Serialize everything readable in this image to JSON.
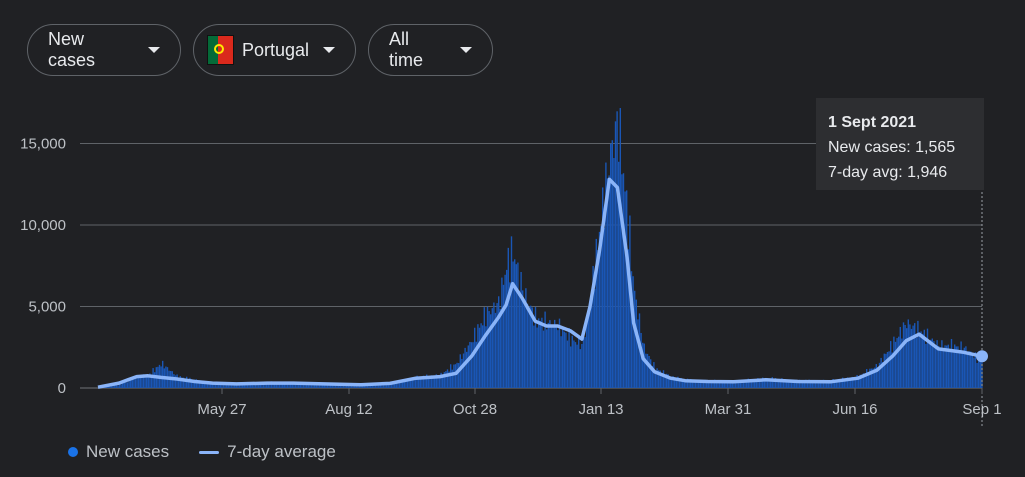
{
  "filters": {
    "metric": "New cases",
    "country": "Portugal",
    "range": "All time"
  },
  "colors": {
    "bars": "#1a56b5",
    "avg_line": "#8ab4f8",
    "grid": "#5f6368",
    "background": "#202124"
  },
  "tooltip": {
    "date": "1 Sept 2021",
    "cases_line": "New cases: 1,565",
    "avg_line": "7-day avg: 1,946"
  },
  "legend": {
    "cases": "New cases",
    "avg": "7-day average"
  },
  "chart_data": {
    "type": "area",
    "title": "",
    "xlabel": "",
    "ylabel": "",
    "x_tick_labels": [
      "May 27",
      "Aug 12",
      "Oct 28",
      "Jan 13",
      "Mar 31",
      "Jun 16",
      "Sep 1"
    ],
    "y_tick_labels": [
      "0",
      "5,000",
      "10,000",
      "15,000"
    ],
    "ylim": [
      0,
      16500
    ],
    "grid": true,
    "legend_position": "bottom",
    "series": [
      {
        "name": "New cases",
        "x": [
          "2020-03-02",
          "2020-03-15",
          "2020-03-26",
          "2020-04-02",
          "2020-04-10",
          "2020-04-20",
          "2020-05-01",
          "2020-05-12",
          "2020-05-27",
          "2020-06-15",
          "2020-07-01",
          "2020-07-20",
          "2020-08-12",
          "2020-08-30",
          "2020-09-15",
          "2020-09-30",
          "2020-10-10",
          "2020-10-20",
          "2020-10-28",
          "2020-11-05",
          "2020-11-10",
          "2020-11-14",
          "2020-11-20",
          "2020-11-28",
          "2020-12-05",
          "2020-12-12",
          "2020-12-20",
          "2020-12-27",
          "2021-01-01",
          "2021-01-07",
          "2021-01-13",
          "2021-01-18",
          "2021-01-24",
          "2021-01-28",
          "2021-02-03",
          "2021-02-10",
          "2021-02-20",
          "2021-03-01",
          "2021-03-15",
          "2021-03-31",
          "2021-04-20",
          "2021-05-10",
          "2021-05-30",
          "2021-06-16",
          "2021-06-28",
          "2021-07-08",
          "2021-07-16",
          "2021-07-24",
          "2021-08-05",
          "2021-08-20",
          "2021-09-01"
        ],
        "values": [
          0,
          200,
          700,
          800,
          1500,
          700,
          500,
          300,
          300,
          350,
          350,
          250,
          250,
          300,
          650,
          800,
          1500,
          3000,
          4500,
          5200,
          7500,
          8300,
          6000,
          4200,
          4000,
          3800,
          3000,
          2600,
          5500,
          10000,
          14200,
          16400,
          10500,
          6000,
          2500,
          1200,
          700,
          500,
          450,
          400,
          600,
          450,
          450,
          700,
          1400,
          2800,
          4000,
          3500,
          2600,
          2500,
          1565
        ]
      },
      {
        "name": "7-day average",
        "x": [
          "2020-03-02",
          "2020-03-15",
          "2020-03-26",
          "2020-04-02",
          "2020-04-10",
          "2020-04-20",
          "2020-05-01",
          "2020-05-12",
          "2020-05-27",
          "2020-06-15",
          "2020-07-01",
          "2020-07-20",
          "2020-08-12",
          "2020-08-30",
          "2020-09-15",
          "2020-09-30",
          "2020-10-10",
          "2020-10-20",
          "2020-10-28",
          "2020-11-05",
          "2020-11-10",
          "2020-11-14",
          "2020-11-20",
          "2020-11-28",
          "2020-12-05",
          "2020-12-12",
          "2020-12-20",
          "2020-12-27",
          "2021-01-01",
          "2021-01-07",
          "2021-01-13",
          "2021-01-18",
          "2021-01-24",
          "2021-01-28",
          "2021-02-03",
          "2021-02-10",
          "2021-02-20",
          "2021-03-01",
          "2021-03-15",
          "2021-03-31",
          "2021-04-20",
          "2021-05-10",
          "2021-05-30",
          "2021-06-16",
          "2021-06-28",
          "2021-07-08",
          "2021-07-16",
          "2021-07-24",
          "2021-08-05",
          "2021-08-20",
          "2021-09-01"
        ],
        "values": [
          50,
          300,
          700,
          750,
          650,
          550,
          400,
          300,
          250,
          300,
          300,
          250,
          200,
          280,
          600,
          700,
          900,
          2000,
          3200,
          4300,
          5100,
          6400,
          5500,
          4100,
          3800,
          3800,
          3500,
          3000,
          5000,
          8500,
          12800,
          12300,
          8000,
          4000,
          1800,
          1000,
          600,
          450,
          400,
          380,
          500,
          400,
          380,
          600,
          1100,
          2000,
          2900,
          3300,
          2400,
          2200,
          1946
        ]
      }
    ]
  }
}
